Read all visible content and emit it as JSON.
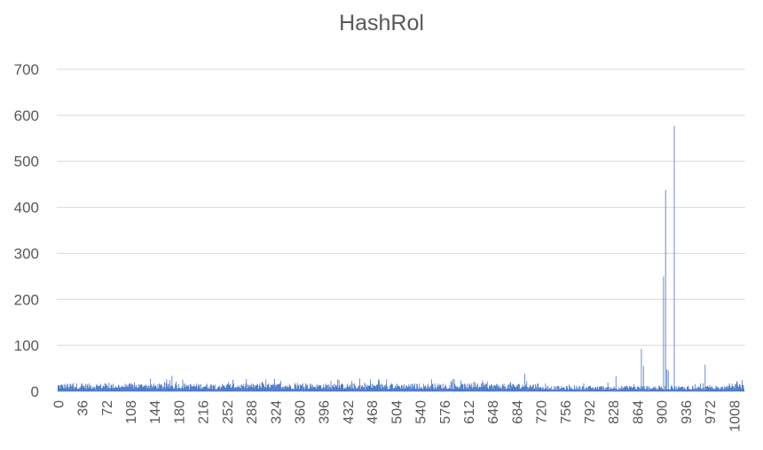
{
  "chart_data": {
    "type": "bar",
    "title": "HashRol",
    "xlabel": "",
    "ylabel": "",
    "ylim": [
      0,
      700
    ],
    "yticks": [
      "0",
      "100",
      "200",
      "300",
      "400",
      "500",
      "600",
      "700"
    ],
    "xlim": [
      0,
      1023
    ],
    "xticks": [
      "0",
      "36",
      "72",
      "108",
      "144",
      "180",
      "216",
      "252",
      "288",
      "324",
      "360",
      "396",
      "432",
      "468",
      "504",
      "540",
      "576",
      "612",
      "648",
      "684",
      "720",
      "756",
      "792",
      "828",
      "864",
      "900",
      "936",
      "972",
      "1008"
    ],
    "grid": true,
    "legend": "none",
    "bar_color": "#4472c4",
    "baseline_range": [
      5,
      28
    ],
    "spikes": [
      {
        "x": 170,
        "y": 34
      },
      {
        "x": 450,
        "y": 28
      },
      {
        "x": 696,
        "y": 38
      },
      {
        "x": 832,
        "y": 33
      },
      {
        "x": 870,
        "y": 92
      },
      {
        "x": 873,
        "y": 55
      },
      {
        "x": 903,
        "y": 250
      },
      {
        "x": 906,
        "y": 438
      },
      {
        "x": 908,
        "y": 48
      },
      {
        "x": 910,
        "y": 45
      },
      {
        "x": 919,
        "y": 577
      },
      {
        "x": 965,
        "y": 58
      }
    ]
  }
}
